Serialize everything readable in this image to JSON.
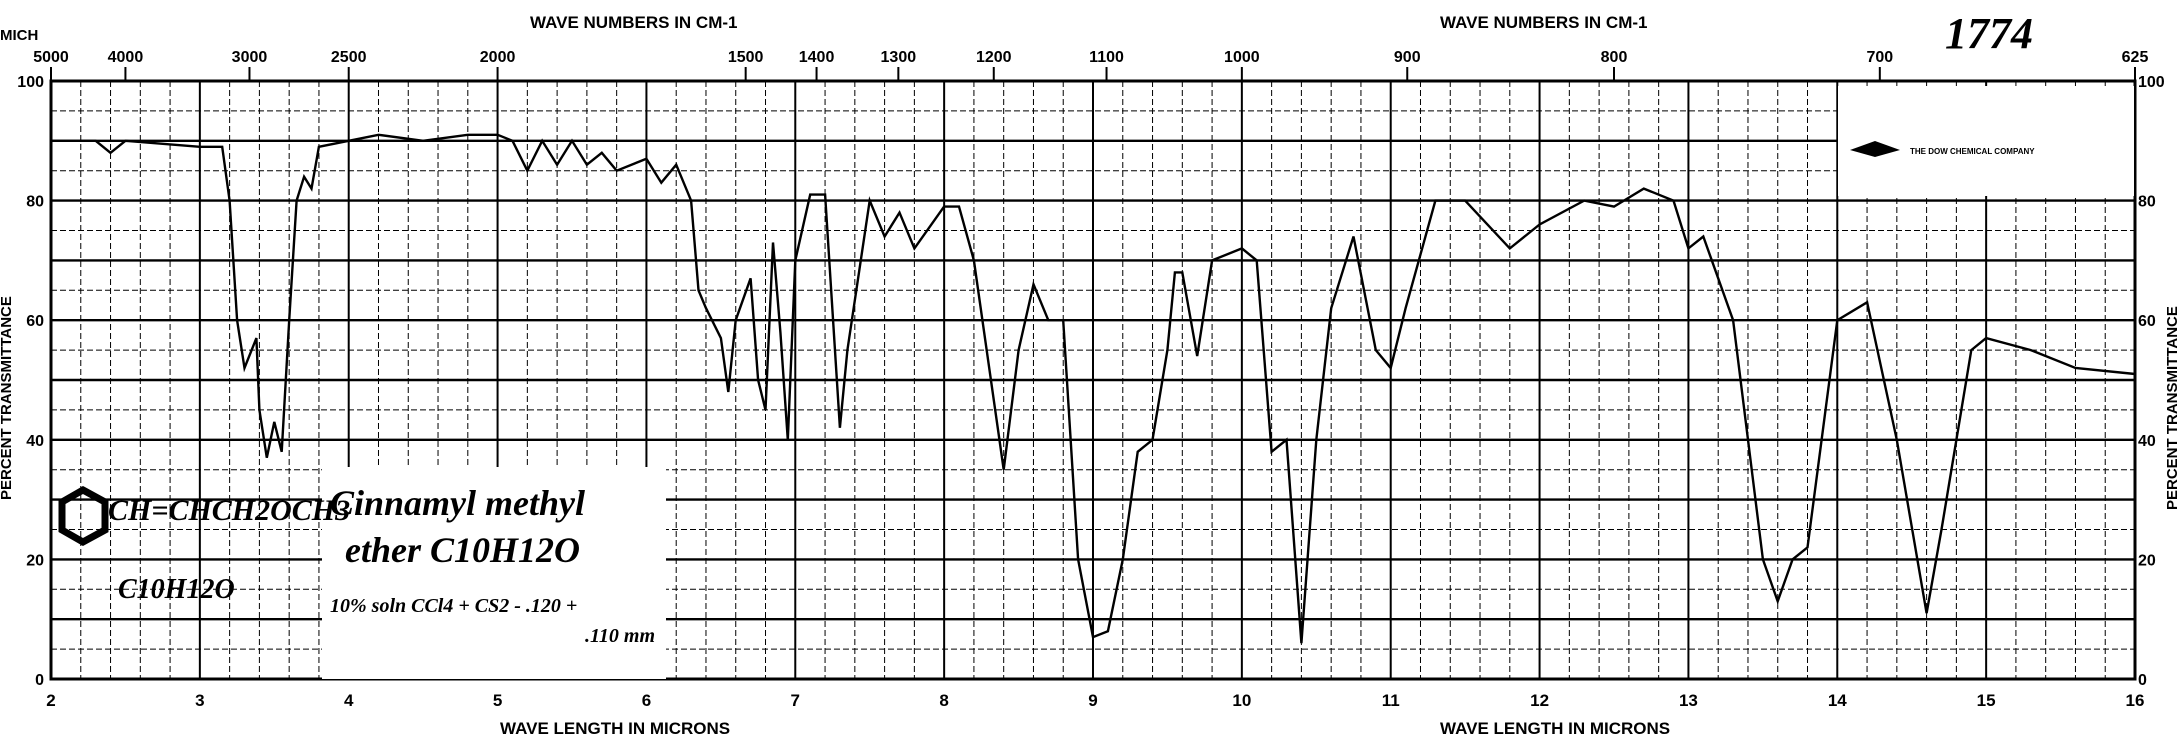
{
  "chart_data": {
    "type": "line",
    "title": "",
    "xlabel": "WAVE LENGTH IN MICRONS",
    "x2label": "WAVE NUMBERS IN CM-1",
    "ylabel": "PERCENT TRANSMITTANCE",
    "xlim": [
      2,
      16
    ],
    "ylim": [
      0,
      100
    ],
    "grid": true,
    "x_ticks": [
      2,
      3,
      4,
      5,
      6,
      7,
      8,
      9,
      10,
      11,
      12,
      13,
      14,
      15,
      16
    ],
    "y_ticks": [
      0,
      20,
      40,
      60,
      80,
      100
    ],
    "wavenumber_ticks": [
      5000,
      4000,
      3000,
      2500,
      2000,
      1500,
      1400,
      1300,
      1200,
      1100,
      1000,
      900,
      800,
      700,
      625
    ],
    "corner_label": "MICH",
    "series": [
      {
        "x": [
          2.0,
          2.3,
          2.4,
          2.5,
          3.0,
          3.15,
          3.2,
          3.25,
          3.3,
          3.38,
          3.4,
          3.45,
          3.5,
          3.55,
          3.6,
          3.65,
          3.7,
          3.75,
          3.8,
          4.0,
          4.2,
          4.5,
          4.8,
          5.0,
          5.1,
          5.2,
          5.3,
          5.4,
          5.5,
          5.6,
          5.7,
          5.8,
          6.0,
          6.1,
          6.2,
          6.3,
          6.35,
          6.4,
          6.5,
          6.55,
          6.6,
          6.7,
          6.75,
          6.8,
          6.85,
          6.9,
          6.95,
          7.0,
          7.1,
          7.2,
          7.3,
          7.35,
          7.5,
          7.6,
          7.7,
          7.8,
          8.0,
          8.1,
          8.2,
          8.4,
          8.5,
          8.6,
          8.7,
          8.8,
          8.9,
          9.0,
          9.1,
          9.2,
          9.3,
          9.4,
          9.5,
          9.55,
          9.6,
          9.7,
          9.8,
          10.0,
          10.1,
          10.2,
          10.3,
          10.4,
          10.5,
          10.6,
          10.75,
          10.9,
          11.0,
          11.1,
          11.3,
          11.5,
          11.8,
          12.0,
          12.3,
          12.5,
          12.7,
          12.9,
          13.0,
          13.1,
          13.3,
          13.5,
          13.6,
          13.7,
          13.8,
          14.0,
          14.2,
          14.4,
          14.6,
          14.7,
          14.9,
          15.0,
          15.3,
          15.6,
          16.0
        ],
        "y": [
          90,
          90,
          88,
          90,
          89,
          89,
          80,
          60,
          52,
          57,
          45,
          37,
          43,
          38,
          60,
          80,
          84,
          82,
          89,
          90,
          91,
          90,
          91,
          91,
          90,
          85,
          90,
          86,
          90,
          86,
          88,
          85,
          87,
          83,
          86,
          80,
          65,
          62,
          57,
          48,
          60,
          67,
          50,
          45,
          73,
          58,
          40,
          70,
          81,
          81,
          42,
          55,
          80,
          74,
          78,
          72,
          79,
          79,
          70,
          35,
          55,
          66,
          60,
          60,
          20,
          7,
          8,
          20,
          38,
          40,
          55,
          68,
          68,
          54,
          70,
          72,
          70,
          38,
          40,
          6,
          40,
          62,
          74,
          55,
          52,
          62,
          80,
          80,
          72,
          76,
          80,
          79,
          82,
          80,
          72,
          74,
          60,
          20,
          13,
          20,
          22,
          60,
          63,
          40,
          11,
          25,
          55,
          57,
          55,
          52,
          51
        ]
      }
    ]
  },
  "annotations": {
    "spectrum_number": "1774",
    "company": "THE DOW CHEMICAL COMPANY",
    "structure": "CH=CHCH2OCH3",
    "structure_formula": "C10H12O",
    "compound_name_line1": "Cinnamyl methyl",
    "compound_name_line2": "ether  C10H12O",
    "conditions_line1": "10% soln CCl4 + CS2 - .120 +",
    "conditions_line2": ".110 mm"
  },
  "colors": {
    "ink": "#000000",
    "paper": "#ffffff"
  }
}
